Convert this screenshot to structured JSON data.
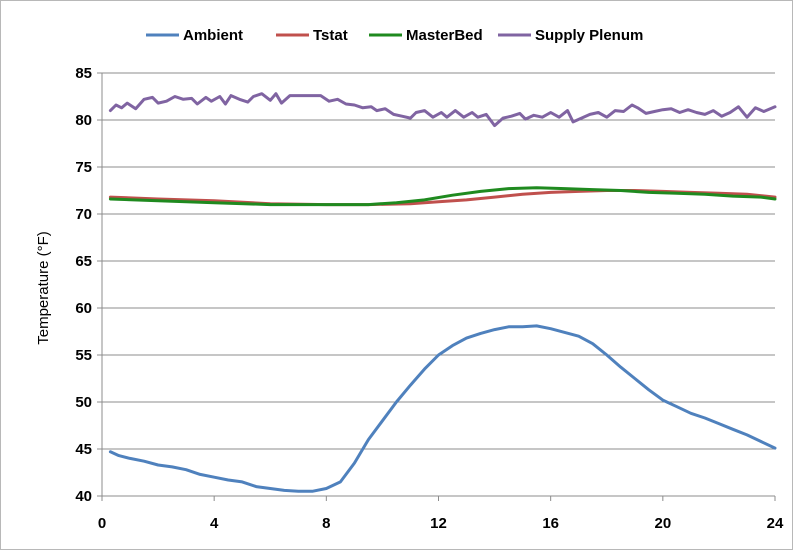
{
  "chart_data": {
    "type": "line",
    "title": "",
    "xlabel": "",
    "ylabel": "Temperature (°F)",
    "xlim": [
      0,
      24
    ],
    "ylim": [
      40,
      85
    ],
    "x_ticks": [
      0,
      4,
      8,
      12,
      16,
      20,
      24
    ],
    "y_ticks": [
      40,
      45,
      50,
      55,
      60,
      65,
      70,
      75,
      80,
      85
    ],
    "grid": "horizontal",
    "legend_position": "top",
    "series": [
      {
        "name": "Ambient",
        "color": "#4f81bd",
        "points": [
          [
            0.3,
            44.7
          ],
          [
            0.6,
            44.3
          ],
          [
            1.0,
            44.0
          ],
          [
            1.5,
            43.7
          ],
          [
            2.0,
            43.3
          ],
          [
            2.5,
            43.1
          ],
          [
            3.0,
            42.8
          ],
          [
            3.5,
            42.3
          ],
          [
            4.0,
            42.0
          ],
          [
            4.5,
            41.7
          ],
          [
            5.0,
            41.5
          ],
          [
            5.5,
            41.0
          ],
          [
            6.0,
            40.8
          ],
          [
            6.5,
            40.6
          ],
          [
            7.0,
            40.5
          ],
          [
            7.5,
            40.5
          ],
          [
            8.0,
            40.8
          ],
          [
            8.5,
            41.5
          ],
          [
            9.0,
            43.5
          ],
          [
            9.5,
            46.0
          ],
          [
            10.0,
            48.0
          ],
          [
            10.5,
            50.0
          ],
          [
            11.0,
            51.8
          ],
          [
            11.5,
            53.5
          ],
          [
            12.0,
            55.0
          ],
          [
            12.5,
            56.0
          ],
          [
            13.0,
            56.8
          ],
          [
            13.5,
            57.3
          ],
          [
            14.0,
            57.7
          ],
          [
            14.5,
            58.0
          ],
          [
            15.0,
            58.0
          ],
          [
            15.5,
            58.1
          ],
          [
            16.0,
            57.8
          ],
          [
            16.5,
            57.4
          ],
          [
            17.0,
            57.0
          ],
          [
            17.5,
            56.2
          ],
          [
            18.0,
            55.0
          ],
          [
            18.5,
            53.7
          ],
          [
            19.0,
            52.5
          ],
          [
            19.5,
            51.3
          ],
          [
            20.0,
            50.2
          ],
          [
            20.5,
            49.5
          ],
          [
            21.0,
            48.8
          ],
          [
            21.5,
            48.3
          ],
          [
            22.0,
            47.7
          ],
          [
            22.5,
            47.1
          ],
          [
            23.0,
            46.5
          ],
          [
            23.5,
            45.8
          ],
          [
            24.0,
            45.1
          ]
        ]
      },
      {
        "name": "Tstat",
        "color": "#c0504d",
        "points": [
          [
            0.3,
            71.8
          ],
          [
            2,
            71.6
          ],
          [
            4,
            71.4
          ],
          [
            6,
            71.1
          ],
          [
            8,
            71.0
          ],
          [
            9.5,
            71.0
          ],
          [
            11,
            71.1
          ],
          [
            12,
            71.3
          ],
          [
            13,
            71.5
          ],
          [
            14,
            71.8
          ],
          [
            15,
            72.1
          ],
          [
            16,
            72.3
          ],
          [
            17,
            72.4
          ],
          [
            18,
            72.5
          ],
          [
            19,
            72.5
          ],
          [
            20,
            72.4
          ],
          [
            21,
            72.3
          ],
          [
            22,
            72.2
          ],
          [
            23,
            72.1
          ],
          [
            24,
            71.8
          ]
        ]
      },
      {
        "name": "MasterBed",
        "color": "#1f8a1f",
        "points": [
          [
            0.3,
            71.6
          ],
          [
            2,
            71.4
          ],
          [
            4,
            71.2
          ],
          [
            6,
            71.0
          ],
          [
            8,
            71.0
          ],
          [
            9.5,
            71.0
          ],
          [
            10.5,
            71.2
          ],
          [
            11.5,
            71.5
          ],
          [
            12.5,
            72.0
          ],
          [
            13.5,
            72.4
          ],
          [
            14.5,
            72.7
          ],
          [
            15.5,
            72.8
          ],
          [
            16.5,
            72.7
          ],
          [
            17.5,
            72.6
          ],
          [
            18.5,
            72.5
          ],
          [
            19.5,
            72.3
          ],
          [
            20.5,
            72.2
          ],
          [
            21.5,
            72.1
          ],
          [
            22.5,
            71.9
          ],
          [
            23.5,
            71.8
          ],
          [
            24,
            71.6
          ]
        ]
      },
      {
        "name": "Supply Plenum",
        "color": "#8064a2",
        "points": [
          [
            0.3,
            81.0
          ],
          [
            0.5,
            81.6
          ],
          [
            0.7,
            81.3
          ],
          [
            0.9,
            81.8
          ],
          [
            1.2,
            81.2
          ],
          [
            1.5,
            82.2
          ],
          [
            1.8,
            82.4
          ],
          [
            2.0,
            81.8
          ],
          [
            2.3,
            82.0
          ],
          [
            2.6,
            82.5
          ],
          [
            2.9,
            82.2
          ],
          [
            3.2,
            82.3
          ],
          [
            3.4,
            81.7
          ],
          [
            3.7,
            82.4
          ],
          [
            3.9,
            82.0
          ],
          [
            4.2,
            82.5
          ],
          [
            4.4,
            81.7
          ],
          [
            4.6,
            82.6
          ],
          [
            4.9,
            82.2
          ],
          [
            5.2,
            81.9
          ],
          [
            5.4,
            82.5
          ],
          [
            5.7,
            82.8
          ],
          [
            6.0,
            82.1
          ],
          [
            6.2,
            82.8
          ],
          [
            6.4,
            81.8
          ],
          [
            6.7,
            82.6
          ],
          [
            7.0,
            82.6
          ],
          [
            7.4,
            82.6
          ],
          [
            7.8,
            82.6
          ],
          [
            8.1,
            82.0
          ],
          [
            8.4,
            82.2
          ],
          [
            8.7,
            81.7
          ],
          [
            9.0,
            81.6
          ],
          [
            9.3,
            81.3
          ],
          [
            9.6,
            81.4
          ],
          [
            9.8,
            81.0
          ],
          [
            10.1,
            81.2
          ],
          [
            10.4,
            80.6
          ],
          [
            10.7,
            80.4
          ],
          [
            11.0,
            80.2
          ],
          [
            11.2,
            80.8
          ],
          [
            11.5,
            81.0
          ],
          [
            11.8,
            80.3
          ],
          [
            12.1,
            80.8
          ],
          [
            12.3,
            80.3
          ],
          [
            12.6,
            81.0
          ],
          [
            12.9,
            80.3
          ],
          [
            13.2,
            80.8
          ],
          [
            13.4,
            80.3
          ],
          [
            13.7,
            80.6
          ],
          [
            14.0,
            79.4
          ],
          [
            14.3,
            80.2
          ],
          [
            14.6,
            80.4
          ],
          [
            14.9,
            80.7
          ],
          [
            15.1,
            80.1
          ],
          [
            15.4,
            80.5
          ],
          [
            15.7,
            80.3
          ],
          [
            16.0,
            80.8
          ],
          [
            16.3,
            80.3
          ],
          [
            16.6,
            81.0
          ],
          [
            16.8,
            79.8
          ],
          [
            17.1,
            80.2
          ],
          [
            17.4,
            80.6
          ],
          [
            17.7,
            80.8
          ],
          [
            18.0,
            80.3
          ],
          [
            18.3,
            81.0
          ],
          [
            18.6,
            80.9
          ],
          [
            18.9,
            81.6
          ],
          [
            19.1,
            81.3
          ],
          [
            19.4,
            80.7
          ],
          [
            19.7,
            80.9
          ],
          [
            20.0,
            81.1
          ],
          [
            20.3,
            81.2
          ],
          [
            20.6,
            80.8
          ],
          [
            20.9,
            81.1
          ],
          [
            21.2,
            80.8
          ],
          [
            21.5,
            80.6
          ],
          [
            21.8,
            81.0
          ],
          [
            22.1,
            80.4
          ],
          [
            22.4,
            80.8
          ],
          [
            22.7,
            81.4
          ],
          [
            23.0,
            80.3
          ],
          [
            23.3,
            81.3
          ],
          [
            23.6,
            80.9
          ],
          [
            24.0,
            81.4
          ]
        ]
      }
    ]
  }
}
